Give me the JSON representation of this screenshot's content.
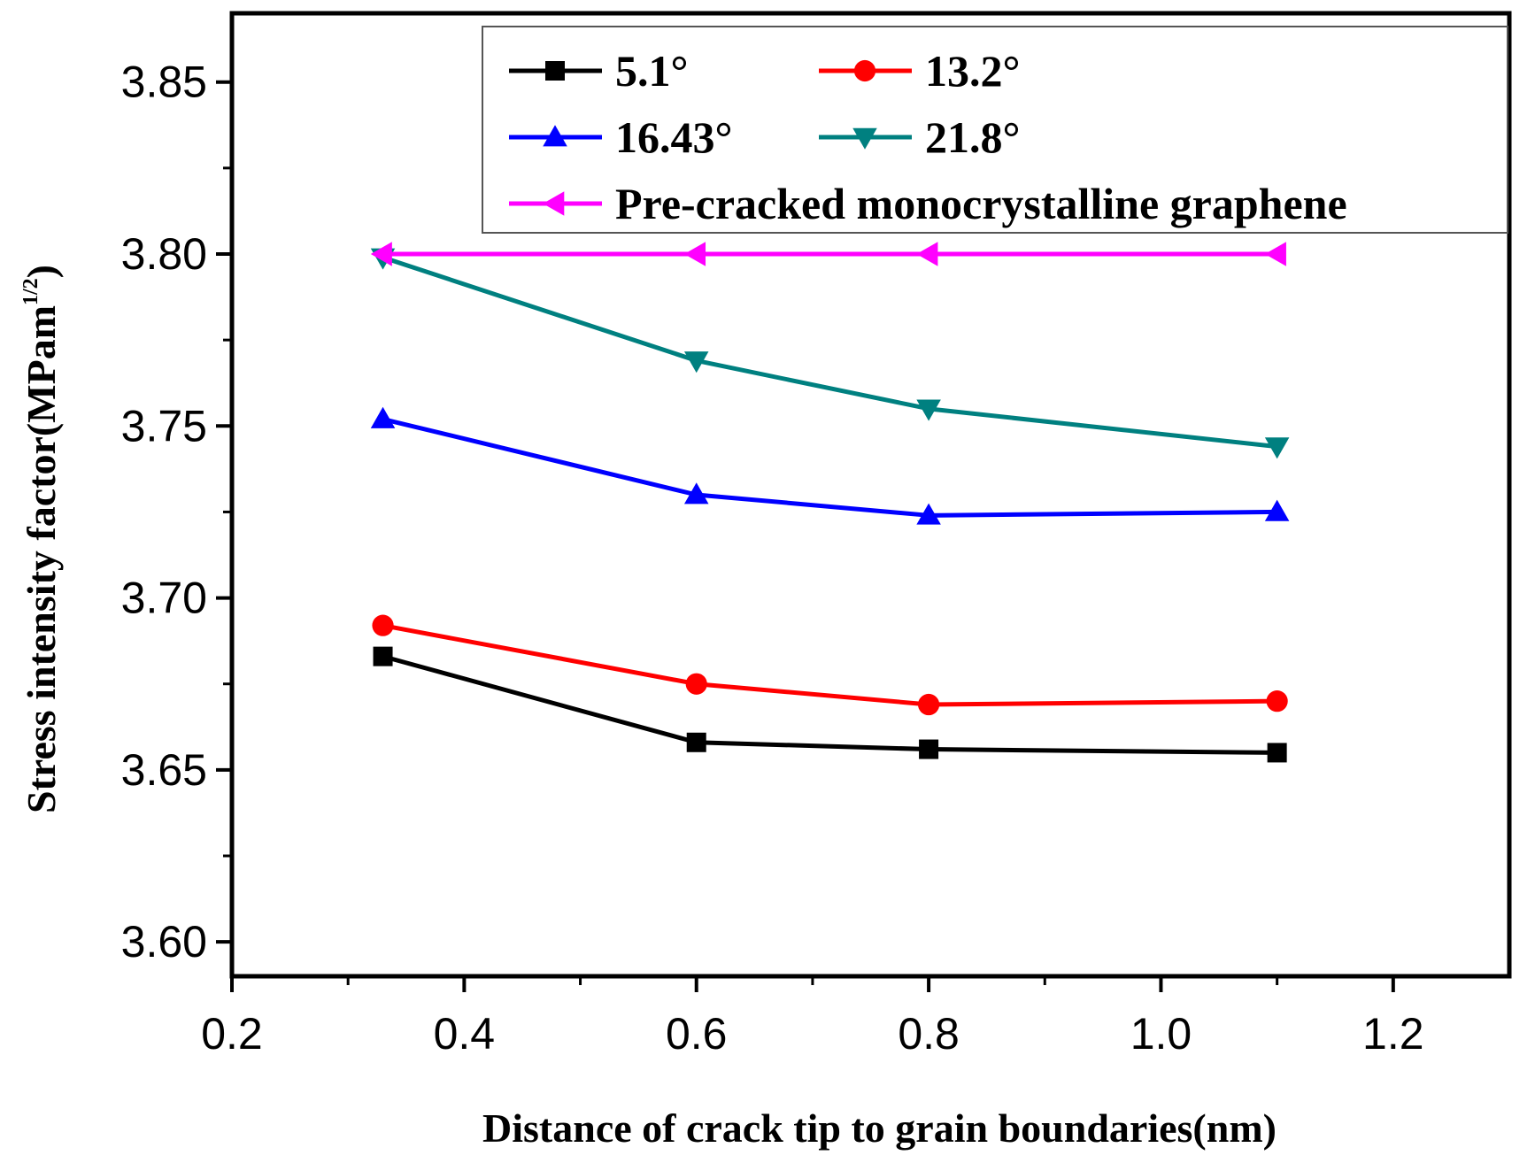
{
  "chart_data": {
    "type": "line",
    "title": "",
    "xlabel": "Distance of crack tip to grain boundaries(nm)",
    "ylabel": {
      "text": "Stress intensity factor(MPam",
      "superscript": "1/2",
      "closing": ")"
    },
    "x": [
      0.33,
      0.6,
      0.8,
      1.1
    ],
    "xlim": [
      0.2,
      1.3
    ],
    "ylim": [
      3.59,
      3.87
    ],
    "xticks": [
      0.2,
      0.4,
      0.6,
      0.8,
      1.0,
      1.2
    ],
    "xtick_labels": [
      "0.2",
      "0.4",
      "0.6",
      "0.8",
      "1.0",
      "1.2"
    ],
    "yticks": [
      3.6,
      3.65,
      3.7,
      3.75,
      3.8,
      3.85
    ],
    "ytick_labels": [
      "3.60",
      "3.65",
      "3.70",
      "3.75",
      "3.80",
      "3.85"
    ],
    "grid": false,
    "legend_position": "top-right",
    "series": [
      {
        "name": "5.1°",
        "color": "#000000",
        "marker": "square",
        "values": [
          3.683,
          3.658,
          3.656,
          3.655
        ]
      },
      {
        "name": "13.2°",
        "color": "#ff0000",
        "marker": "circle",
        "values": [
          3.692,
          3.675,
          3.669,
          3.67
        ]
      },
      {
        "name": "16.43°",
        "color": "#0000ff",
        "marker": "triangle-up",
        "values": [
          3.752,
          3.73,
          3.724,
          3.725
        ]
      },
      {
        "name": "21.8°",
        "color": "#008080",
        "marker": "triangle-down",
        "values": [
          3.799,
          3.769,
          3.755,
          3.744
        ]
      },
      {
        "name": "Pre-cracked monocrystalline graphene",
        "color": "#ff00ff",
        "marker": "triangle-left",
        "values": [
          3.8,
          3.8,
          3.8,
          3.8
        ]
      }
    ]
  }
}
